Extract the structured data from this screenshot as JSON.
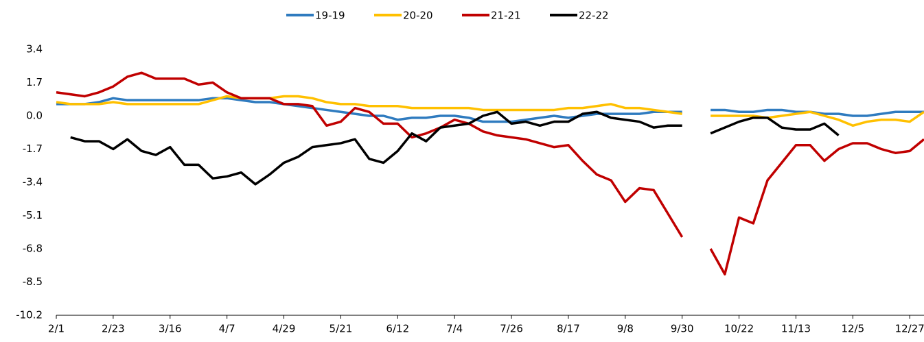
{
  "chart_data": {
    "type": "line",
    "categories": [
      "2/1",
      null,
      null,
      null,
      "2/23",
      null,
      null,
      null,
      "3/16",
      null,
      null,
      null,
      "4/7",
      null,
      null,
      null,
      "4/29",
      null,
      null,
      null,
      "5/21",
      null,
      null,
      null,
      "6/12",
      null,
      null,
      null,
      "7/4",
      null,
      null,
      null,
      "7/26",
      null,
      null,
      null,
      "8/17",
      null,
      null,
      null,
      "9/8",
      null,
      null,
      null,
      "9/30",
      null,
      null,
      null,
      "10/22",
      null,
      null,
      null,
      "11/13",
      null,
      null,
      null,
      "12/5",
      null,
      null,
      null,
      "12/27",
      null
    ],
    "series": [
      {
        "name": "19-19",
        "color": "#2f7bbf",
        "values": [
          0.6,
          0.6,
          0.6,
          0.7,
          0.9,
          0.8,
          0.8,
          0.8,
          0.8,
          0.8,
          0.8,
          0.9,
          0.9,
          0.8,
          0.7,
          0.7,
          0.6,
          0.5,
          0.4,
          0.3,
          0.2,
          0.1,
          0.0,
          0.0,
          -0.2,
          -0.1,
          -0.1,
          0.0,
          0.0,
          -0.1,
          -0.3,
          -0.3,
          -0.3,
          -0.2,
          -0.1,
          0.0,
          -0.1,
          0.0,
          0.1,
          0.1,
          0.1,
          0.1,
          0.2,
          0.2,
          0.2,
          null,
          0.3,
          0.3,
          0.2,
          0.2,
          0.3,
          0.3,
          0.2,
          0.2,
          0.1,
          0.1,
          0.0,
          0.0,
          0.1,
          0.2,
          0.2,
          0.2
        ]
      },
      {
        "name": "20-20",
        "color": "#ffc000",
        "values": [
          0.7,
          0.6,
          0.6,
          0.6,
          0.7,
          0.6,
          0.6,
          0.6,
          0.6,
          0.6,
          0.6,
          0.8,
          1.0,
          0.9,
          0.9,
          0.9,
          1.0,
          1.0,
          0.9,
          0.7,
          0.6,
          0.6,
          0.5,
          0.5,
          0.5,
          0.4,
          0.4,
          0.4,
          0.4,
          0.4,
          0.3,
          0.3,
          0.3,
          0.3,
          0.3,
          0.3,
          0.4,
          0.4,
          0.5,
          0.6,
          0.4,
          0.4,
          0.3,
          0.2,
          0.1,
          null,
          0.0,
          0.0,
          0.0,
          0.0,
          -0.1,
          0.0,
          0.1,
          0.2,
          0.0,
          -0.2,
          -0.5,
          -0.3,
          -0.2,
          -0.2,
          -0.3,
          0.2
        ]
      },
      {
        "name": "21-21",
        "color": "#c00000",
        "values": [
          1.2,
          1.1,
          1.0,
          1.2,
          1.5,
          2.0,
          2.2,
          1.9,
          1.9,
          1.9,
          1.6,
          1.7,
          1.2,
          0.9,
          0.9,
          0.9,
          0.6,
          0.6,
          0.5,
          -0.5,
          -0.3,
          0.4,
          0.2,
          -0.4,
          -0.4,
          -1.1,
          -0.9,
          -0.6,
          -0.2,
          -0.4,
          -0.8,
          -1.0,
          -1.1,
          -1.2,
          -1.4,
          -1.6,
          -1.5,
          -2.3,
          -3.0,
          -3.3,
          -4.4,
          -3.7,
          -3.8,
          -5.0,
          -6.2,
          null,
          -6.8,
          -8.1,
          -5.2,
          -5.5,
          -3.3,
          -2.4,
          -1.5,
          -1.5,
          -2.3,
          -1.7,
          -1.4,
          -1.4,
          -1.7,
          -1.9,
          -1.8,
          -1.2
        ]
      },
      {
        "name": "22-22",
        "color": "#000000",
        "values": [
          null,
          -1.1,
          -1.3,
          -1.3,
          -1.7,
          -1.2,
          -1.8,
          -2.0,
          -1.6,
          -2.5,
          -2.5,
          -3.2,
          -3.1,
          -2.9,
          -3.5,
          -3.0,
          -2.4,
          -2.1,
          -1.6,
          -1.5,
          -1.4,
          -1.2,
          -2.2,
          -2.4,
          -1.8,
          -0.9,
          -1.3,
          -0.6,
          -0.5,
          -0.4,
          0.0,
          0.2,
          -0.4,
          -0.3,
          -0.5,
          -0.3,
          -0.3,
          0.1,
          0.2,
          -0.1,
          -0.2,
          -0.3,
          -0.6,
          -0.5,
          -0.5,
          null,
          -0.9,
          -0.6,
          -0.3,
          -0.1,
          -0.1,
          -0.6,
          -0.7,
          -0.7,
          -0.4,
          -1.0,
          null,
          null,
          null,
          null,
          null,
          null
        ]
      }
    ],
    "ylim": [
      -10.2,
      3.4
    ],
    "yticks": [
      -10.2,
      -8.5,
      -6.8,
      -5.1,
      -3.4,
      -1.7,
      {
        "value": 0,
        "label": "0.0"
      },
      1.7,
      3.4
    ],
    "grid": false,
    "legend": "top"
  }
}
